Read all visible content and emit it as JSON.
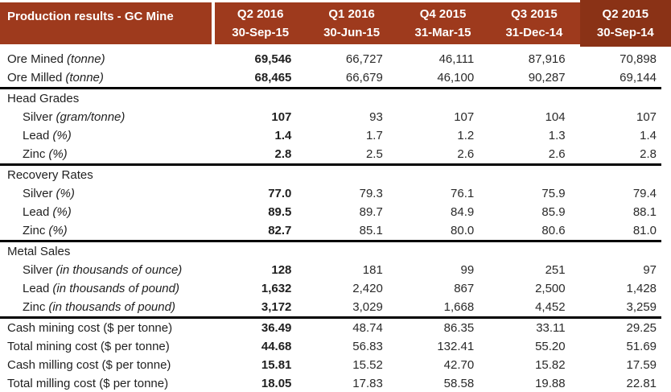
{
  "colors": {
    "header_bg": "#9E3A1D",
    "header_highlight_bg": "#8A3216",
    "divider": "#000000",
    "text": "#1F1F1F"
  },
  "chart_data": {
    "type": "table",
    "title": "Production results - GC Mine",
    "columns": [
      {
        "quarter": "Q2 2016",
        "date": "30-Sep-15"
      },
      {
        "quarter": "Q1 2016",
        "date": "30-Jun-15"
      },
      {
        "quarter": "Q4 2015",
        "date": "31-Mar-15"
      },
      {
        "quarter": "Q3 2015",
        "date": "31-Dec-14"
      },
      {
        "quarter": "Q2 2015",
        "date": "30-Sep-14"
      }
    ],
    "rows": [
      {
        "label": "Ore Mined",
        "unit": "(tonne)",
        "indent": 0,
        "section": false,
        "divider_after": false,
        "values": [
          "69,546",
          "66,727",
          "46,111",
          "87,916",
          "70,898"
        ]
      },
      {
        "label": "Ore Milled",
        "unit": "(tonne)",
        "indent": 0,
        "section": false,
        "divider_after": true,
        "values": [
          "68,465",
          "66,679",
          "46,100",
          "90,287",
          "69,144"
        ]
      },
      {
        "label": "Head Grades",
        "unit": "",
        "indent": 0,
        "section": true,
        "divider_after": false,
        "values": [
          "",
          "",
          "",
          "",
          ""
        ]
      },
      {
        "label": "Silver",
        "unit": "(gram/tonne)",
        "indent": 1,
        "section": false,
        "divider_after": false,
        "values": [
          "107",
          "93",
          "107",
          "104",
          "107"
        ]
      },
      {
        "label": "Lead",
        "unit": "(%)",
        "indent": 1,
        "section": false,
        "divider_after": false,
        "values": [
          "1.4",
          "1.7",
          "1.2",
          "1.3",
          "1.4"
        ]
      },
      {
        "label": "Zinc",
        "unit": "(%)",
        "indent": 1,
        "section": false,
        "divider_after": true,
        "values": [
          "2.8",
          "2.5",
          "2.6",
          "2.6",
          "2.8"
        ]
      },
      {
        "label": "Recovery Rates",
        "unit": "",
        "indent": 0,
        "section": true,
        "divider_after": false,
        "values": [
          "",
          "",
          "",
          "",
          ""
        ]
      },
      {
        "label": "Silver",
        "unit": "(%)",
        "indent": 1,
        "section": false,
        "divider_after": false,
        "values": [
          "77.0",
          "79.3",
          "76.1",
          "75.9",
          "79.4"
        ]
      },
      {
        "label": "Lead",
        "unit": "(%)",
        "indent": 1,
        "section": false,
        "divider_after": false,
        "values": [
          "89.5",
          "89.7",
          "84.9",
          "85.9",
          "88.1"
        ]
      },
      {
        "label": "Zinc",
        "unit": "(%)",
        "indent": 1,
        "section": false,
        "divider_after": true,
        "values": [
          "82.7",
          "85.1",
          "80.0",
          "80.6",
          "81.0"
        ]
      },
      {
        "label": "Metal Sales",
        "unit": "",
        "indent": 0,
        "section": true,
        "divider_after": false,
        "values": [
          "",
          "",
          "",
          "",
          ""
        ]
      },
      {
        "label": "Silver",
        "unit": "(in thousands of ounce)",
        "indent": 1,
        "section": false,
        "divider_after": false,
        "values": [
          "128",
          "181",
          "99",
          "251",
          "97"
        ]
      },
      {
        "label": "Lead",
        "unit": "(in thousands of pound)",
        "indent": 1,
        "section": false,
        "divider_after": false,
        "values": [
          "1,632",
          "2,420",
          "867",
          "2,500",
          "1,428"
        ]
      },
      {
        "label": "Zinc",
        "unit": "(in thousands of pound)",
        "indent": 1,
        "section": false,
        "divider_after": true,
        "values": [
          "3,172",
          "3,029",
          "1,668",
          "4,452",
          "3,259"
        ]
      },
      {
        "label": "Cash mining cost ($ per tonne)",
        "unit": "",
        "indent": 0,
        "section": false,
        "divider_after": false,
        "values": [
          "36.49",
          "48.74",
          "86.35",
          "33.11",
          "29.25"
        ]
      },
      {
        "label": "Total mining cost ($ per tonne)",
        "unit": "",
        "indent": 0,
        "section": false,
        "divider_after": false,
        "values": [
          "44.68",
          "56.83",
          "132.41",
          "55.20",
          "51.69"
        ]
      },
      {
        "label": "Cash milling cost ($ per tonne)",
        "unit": "",
        "indent": 0,
        "section": false,
        "divider_after": false,
        "values": [
          "15.81",
          "15.52",
          "42.70",
          "15.82",
          "17.59"
        ]
      },
      {
        "label": "Total milling cost ($ per tonne)",
        "unit": "",
        "indent": 0,
        "section": false,
        "divider_after": true,
        "values": [
          "18.05",
          "17.83",
          "58.58",
          "19.88",
          "22.81"
        ]
      }
    ],
    "layout": {
      "bold_column_index": 0,
      "grid": false,
      "value_alignment": "right"
    }
  }
}
